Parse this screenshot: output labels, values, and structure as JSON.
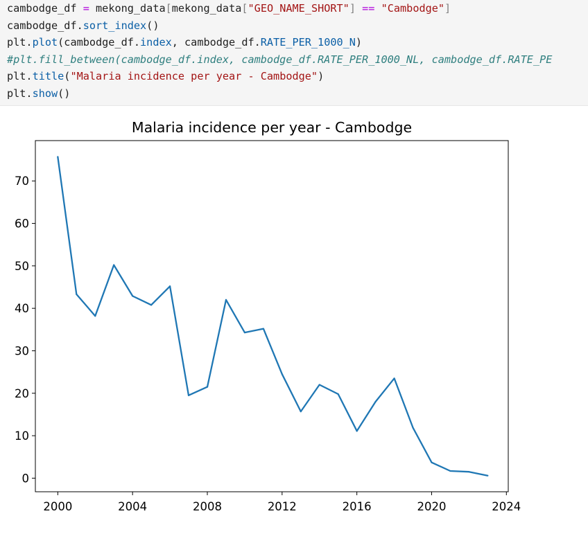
{
  "code_cell": {
    "lines": [
      [
        {
          "t": "cambodge_df ",
          "c": ""
        },
        {
          "t": "=",
          "c": "tok-op"
        },
        {
          "t": " mekong_data",
          "c": ""
        },
        {
          "t": "[",
          "c": "tok-br"
        },
        {
          "t": "mekong_data",
          "c": ""
        },
        {
          "t": "[",
          "c": "tok-br"
        },
        {
          "t": "\"GEO_NAME_SHORT\"",
          "c": "tok-str"
        },
        {
          "t": "]",
          "c": "tok-br"
        },
        {
          "t": " ",
          "c": ""
        },
        {
          "t": "==",
          "c": "tok-op"
        },
        {
          "t": " ",
          "c": ""
        },
        {
          "t": "\"Cambodge\"",
          "c": "tok-str"
        },
        {
          "t": "]",
          "c": "tok-br"
        }
      ],
      [
        {
          "t": "cambodge_df.",
          "c": ""
        },
        {
          "t": "sort_index",
          "c": "tok-fn"
        },
        {
          "t": "()",
          "c": ""
        }
      ],
      [
        {
          "t": "plt.",
          "c": ""
        },
        {
          "t": "plot",
          "c": "tok-fn"
        },
        {
          "t": "(cambodge_df.",
          "c": ""
        },
        {
          "t": "index",
          "c": "tok-attr"
        },
        {
          "t": ", cambodge_df.",
          "c": ""
        },
        {
          "t": "RATE_PER_1000_N",
          "c": "tok-attr"
        },
        {
          "t": ")",
          "c": ""
        }
      ],
      [
        {
          "t": "#plt.fill_between(cambodge_df.index, cambodge_df.RATE_PER_1000_NL, cambodge_df.RATE_PE",
          "c": "tok-comment"
        }
      ],
      [
        {
          "t": "plt.",
          "c": ""
        },
        {
          "t": "title",
          "c": "tok-fn"
        },
        {
          "t": "(",
          "c": ""
        },
        {
          "t": "\"Malaria incidence per year - Cambodge\"",
          "c": "tok-str"
        },
        {
          "t": ")",
          "c": ""
        }
      ],
      [
        {
          "t": "plt.",
          "c": ""
        },
        {
          "t": "show",
          "c": "tok-fn"
        },
        {
          "t": "()",
          "c": ""
        }
      ]
    ]
  },
  "chart_data": {
    "type": "line",
    "title": "Malaria incidence per year - Cambodge",
    "xlabel": "",
    "ylabel": "",
    "x": [
      2000,
      2001,
      2002,
      2003,
      2004,
      2005,
      2006,
      2007,
      2008,
      2009,
      2010,
      2011,
      2012,
      2013,
      2014,
      2015,
      2016,
      2017,
      2018,
      2019,
      2020,
      2021,
      2022,
      2023
    ],
    "series": [
      {
        "color": "#1f77b4",
        "values": [
          75.7,
          43.3,
          38.2,
          50.2,
          42.9,
          40.8,
          45.2,
          19.5,
          21.5,
          42.0,
          34.3,
          35.2,
          24.5,
          15.7,
          22.0,
          19.8,
          11.1,
          18.0,
          23.5,
          11.9,
          3.7,
          1.7,
          1.5,
          0.6
        ]
      }
    ],
    "xticks": [
      2000,
      2004,
      2008,
      2012,
      2016,
      2020,
      2024
    ],
    "yticks": [
      0,
      10,
      20,
      30,
      40,
      50,
      60,
      70
    ],
    "xlim": [
      1998.8,
      2024.1
    ],
    "ylim": [
      -3.2,
      79.5
    ],
    "grid": false
  }
}
